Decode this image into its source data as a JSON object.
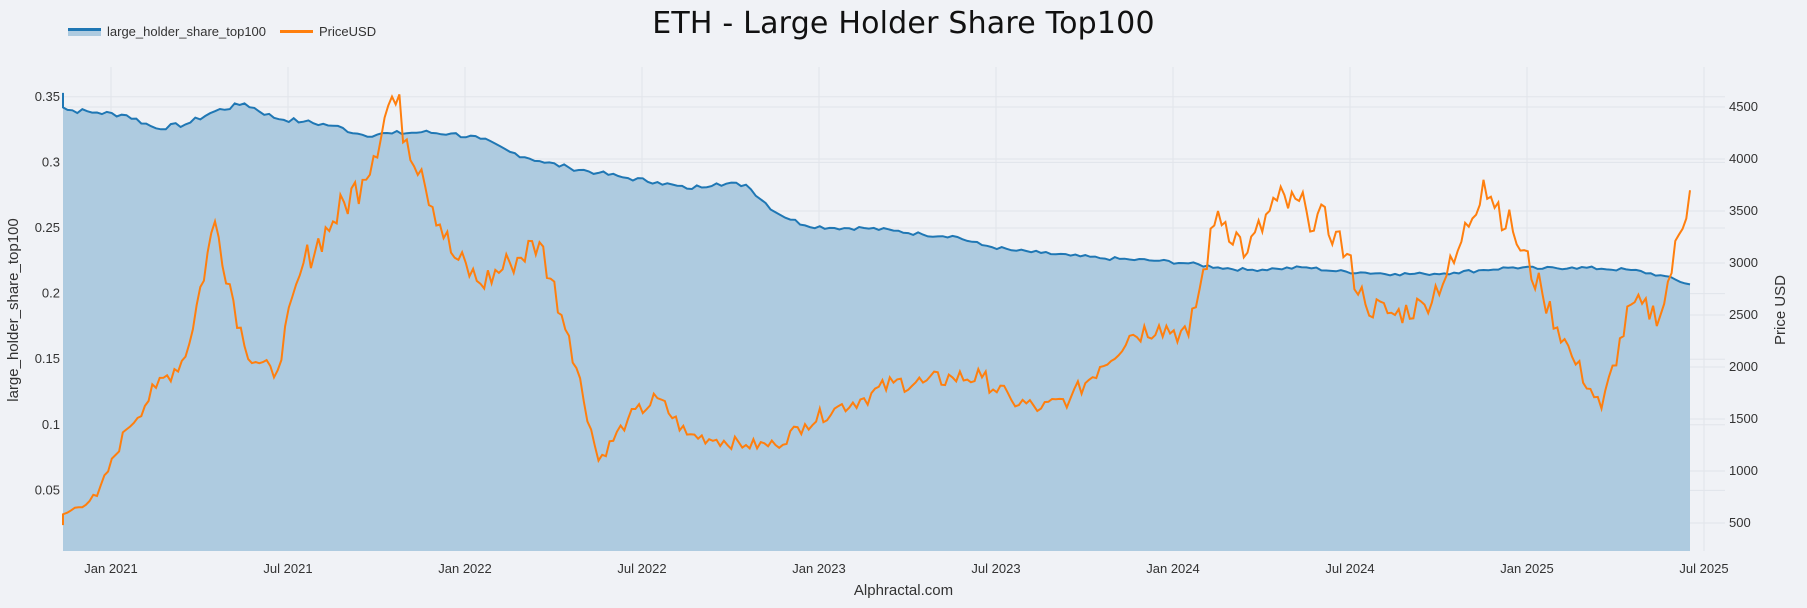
{
  "title": "ETH - Large Holder Share Top100",
  "footer": "Alphractal.com",
  "legend": [
    {
      "label": "large_holder_share_top100",
      "color": "#1f77b4",
      "fill": "#aecbe0"
    },
    {
      "label": "PriceUSD",
      "color": "#ff7f0e"
    }
  ],
  "colors": {
    "background": "#f0f2f6",
    "share_line": "#1f77b4",
    "share_fill": "#aecbe0",
    "price_line": "#ff7f0e",
    "grid": "#e1e4ea"
  },
  "chart_data": {
    "type": "line",
    "title": "ETH - Large Holder Share Top100",
    "xlabel": "",
    "ylabel": "large_holder_share_top100",
    "y2label": "Price USD",
    "x_ticks": [
      "Jan 2021",
      "Jul 2021",
      "Jan 2022",
      "Jul 2022",
      "Jan 2023",
      "Jul 2023",
      "Jan 2024",
      "Jul 2024",
      "Jan 2025",
      "Jul 2025"
    ],
    "y_ticks": [
      "0.05",
      "0.1",
      "0.15",
      "0.2",
      "0.25",
      "0.3",
      "0.35"
    ],
    "y2_ticks": [
      "500",
      "1000",
      "1500",
      "2000",
      "2500",
      "3000",
      "3500",
      "4000",
      "4500"
    ],
    "ylim": [
      0.004,
      0.358
    ],
    "y2lim": [
      260,
      4850
    ],
    "grid": true,
    "legend_position": "top-left",
    "x": [
      "2020-11",
      "2020-12",
      "2021-01",
      "2021-02",
      "2021-03",
      "2021-04",
      "2021-05",
      "2021-06",
      "2021-07",
      "2021-08",
      "2021-09",
      "2021-10",
      "2021-11",
      "2021-12",
      "2022-01",
      "2022-02",
      "2022-03",
      "2022-04",
      "2022-05",
      "2022-06",
      "2022-07",
      "2022-08",
      "2022-09",
      "2022-10",
      "2022-11",
      "2022-12",
      "2023-01",
      "2023-02",
      "2023-03",
      "2023-04",
      "2023-05",
      "2023-06",
      "2023-07",
      "2023-08",
      "2023-09",
      "2023-10",
      "2023-11",
      "2023-12",
      "2024-01",
      "2024-02",
      "2024-03",
      "2024-04",
      "2024-05",
      "2024-06",
      "2024-07",
      "2024-08",
      "2024-09",
      "2024-10",
      "2024-11",
      "2024-12",
      "2025-01",
      "2025-02",
      "2025-03",
      "2025-04",
      "2025-05",
      "2025-06",
      "2025-07"
    ],
    "series": [
      {
        "name": "large_holder_share_top100",
        "type": "area",
        "axis": "left",
        "values": [
          0.353,
          0.34,
          0.338,
          0.336,
          0.326,
          0.329,
          0.339,
          0.345,
          0.334,
          0.331,
          0.328,
          0.321,
          0.322,
          0.323,
          0.322,
          0.318,
          0.308,
          0.301,
          0.296,
          0.292,
          0.288,
          0.285,
          0.28,
          0.284,
          0.283,
          0.262,
          0.252,
          0.25,
          0.25,
          0.248,
          0.245,
          0.244,
          0.237,
          0.233,
          0.231,
          0.229,
          0.227,
          0.226,
          0.225,
          0.223,
          0.22,
          0.218,
          0.219,
          0.22,
          0.217,
          0.216,
          0.215,
          0.215,
          0.216,
          0.218,
          0.22,
          0.219,
          0.22,
          0.219,
          0.218,
          0.214,
          0.207
        ]
      },
      {
        "name": "PriceUSD",
        "type": "line",
        "axis": "right",
        "values": [
          480,
          600,
          760,
          1400,
          1800,
          2100,
          3400,
          2200,
          1900,
          3000,
          3400,
          3800,
          4600,
          3900,
          3100,
          2800,
          3000,
          3200,
          2300,
          1100,
          1500,
          1700,
          1350,
          1300,
          1250,
          1250,
          1450,
          1600,
          1700,
          1850,
          1850,
          1900,
          1900,
          1680,
          1600,
          1700,
          2000,
          2300,
          2400,
          2300,
          3500,
          3100,
          3600,
          3500,
          3300,
          2600,
          2500,
          2600,
          3000,
          3800,
          3300,
          2700,
          2100,
          1600,
          2600,
          2500,
          3700
        ]
      }
    ]
  }
}
